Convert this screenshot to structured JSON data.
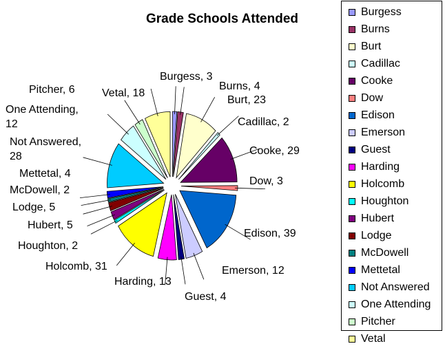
{
  "chart_data": {
    "type": "pie",
    "title": "Grade Schools Attended",
    "legend_position": "right",
    "slices": [
      {
        "name": "Burgess",
        "value": 3,
        "label": "Burgess, 3",
        "color": "#9999ff"
      },
      {
        "name": "Burns",
        "value": 4,
        "label": "Burns, 4",
        "color": "#993366"
      },
      {
        "name": "Burt",
        "value": 23,
        "label": "Burt, 23",
        "color": "#ffffcc"
      },
      {
        "name": "Cadillac",
        "value": 2,
        "label": "Cadillac, 2",
        "color": "#ccffff"
      },
      {
        "name": "Cooke",
        "value": 29,
        "label": "Cooke, 29",
        "color": "#660066"
      },
      {
        "name": "Dow",
        "value": 3,
        "label": "Dow, 3",
        "color": "#ff8080"
      },
      {
        "name": "Edison",
        "value": 39,
        "label": "Edison, 39",
        "color": "#0066cc"
      },
      {
        "name": "Emerson",
        "value": 12,
        "label": "Emerson, 12",
        "color": "#ccccff"
      },
      {
        "name": "Guest",
        "value": 4,
        "label": "Guest, 4",
        "color": "#000080"
      },
      {
        "name": "Harding",
        "value": 13,
        "label": "Harding, 13",
        "color": "#ff00ff"
      },
      {
        "name": "Holcomb",
        "value": 31,
        "label": "Holcomb, 31",
        "color": "#ffff00"
      },
      {
        "name": "Houghton",
        "value": 2,
        "label": "Houghton, 2",
        "color": "#00ffff"
      },
      {
        "name": "Hubert",
        "value": 5,
        "label": "Hubert, 5",
        "color": "#800080"
      },
      {
        "name": "Lodge",
        "value": 5,
        "label": "Lodge, 5",
        "color": "#800000"
      },
      {
        "name": "McDowell",
        "value": 2,
        "label": "McDowell, 2",
        "color": "#008080"
      },
      {
        "name": "Mettetal",
        "value": 4,
        "label": "Mettetal, 4",
        "color": "#0000ff"
      },
      {
        "name": "Not Answered",
        "value": 28,
        "label": "Not Answered,\n28",
        "color": "#00ccff"
      },
      {
        "name": "One Attending",
        "value": 12,
        "label": "One Attending,\n12",
        "color": "#ccffff"
      },
      {
        "name": "Pitcher",
        "value": 6,
        "label": "Pitcher, 6",
        "color": "#ccffcc"
      },
      {
        "name": "Vetal",
        "value": 18,
        "label": "Vetal, 18",
        "color": "#ffff99"
      }
    ]
  }
}
